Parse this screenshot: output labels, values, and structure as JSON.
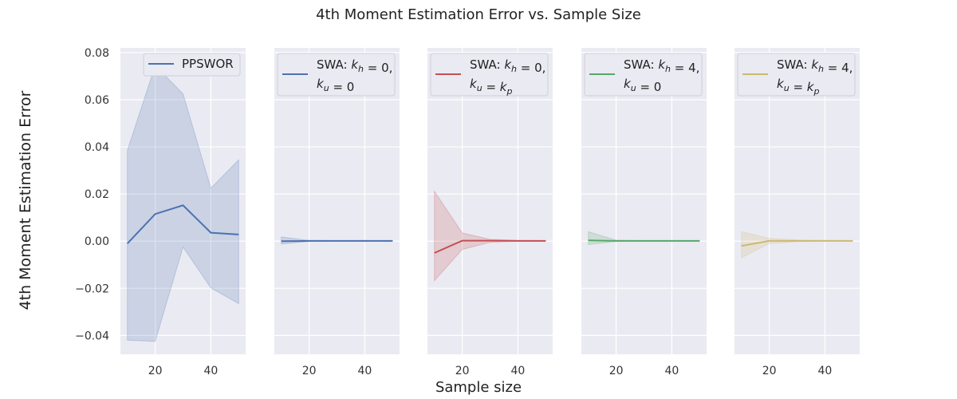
{
  "chart_data": {
    "title": "4th Moment Estimation Error vs. Sample Size",
    "xlabel": "Sample size",
    "ylabel": "4th Moment Estimation Error",
    "type": "line",
    "shared_y": true,
    "ylim": [
      -0.048,
      0.082
    ],
    "xlim": [
      7.5,
      52.5
    ],
    "yticks": [
      "0.08",
      "0.06",
      "0.04",
      "0.02",
      "0.00",
      "−0.02",
      "−0.04"
    ],
    "ytick_values": [
      0.08,
      0.06,
      0.04,
      0.02,
      0.0,
      -0.02,
      -0.04
    ],
    "xticks": [
      20,
      40
    ],
    "grid": true,
    "panels": [
      {
        "legend": "PPSWOR",
        "legend_parts": [
          {
            "line": "PPSWOR"
          }
        ],
        "color": "#4c72b0",
        "x": [
          10,
          20,
          30,
          40,
          50
        ],
        "mean": [
          -0.001,
          0.0115,
          0.0152,
          0.0036,
          0.0028
        ],
        "lower": [
          -0.042,
          -0.0425,
          -0.0025,
          -0.0198,
          -0.0265
        ],
        "upper": [
          0.0385,
          0.0745,
          0.0625,
          0.0225,
          0.0345
        ]
      },
      {
        "legend": "SWA: k_h = 0, k_u = 0",
        "legend_parts": [
          {
            "line": "SWA: k_h = 0,"
          },
          {
            "line": "k_u = 0"
          }
        ],
        "color": "#4c72b0",
        "x": [
          10,
          20,
          30,
          40,
          50
        ],
        "mean": [
          0.0,
          0.0001,
          0.0001,
          0.0001,
          0.0001
        ],
        "lower": [
          -0.0012,
          -0.0001,
          0.0,
          0.0,
          0.0
        ],
        "upper": [
          0.0018,
          0.0003,
          0.0002,
          0.0002,
          0.0002
        ]
      },
      {
        "legend": "SWA: k_h = 0, k_u = k_p",
        "legend_parts": [
          {
            "line": "SWA: k_h = 0,"
          },
          {
            "line": "k_u = k_p"
          }
        ],
        "color": "#c44e52",
        "x": [
          10,
          20,
          30,
          40,
          50
        ],
        "mean": [
          -0.005,
          0.0002,
          0.0002,
          0.0001,
          0.0001
        ],
        "lower": [
          -0.0168,
          -0.0035,
          -0.0005,
          0.0,
          0.0
        ],
        "upper": [
          0.0212,
          0.0035,
          0.0008,
          0.0003,
          0.0002
        ]
      },
      {
        "legend": "SWA: k_h = 4, k_u = 0",
        "legend_parts": [
          {
            "line": "SWA: k_h = 4,"
          },
          {
            "line": "k_u = 0"
          }
        ],
        "color": "#55a868",
        "x": [
          10,
          20,
          30,
          40,
          50
        ],
        "mean": [
          0.0003,
          0.0001,
          0.0001,
          0.0001,
          0.0001
        ],
        "lower": [
          -0.0015,
          -0.0001,
          0.0,
          0.0,
          0.0
        ],
        "upper": [
          0.004,
          0.0004,
          0.0002,
          0.0002,
          0.0002
        ]
      },
      {
        "legend": "SWA: k_h = 4, k_u = k_p",
        "legend_parts": [
          {
            "line": "SWA: k_h = 4,"
          },
          {
            "line": "k_u = k_p"
          }
        ],
        "color": "#ccb974",
        "x": [
          10,
          20,
          30,
          40,
          50
        ],
        "mean": [
          -0.002,
          0.0001,
          0.0001,
          0.0001,
          0.0001
        ],
        "lower": [
          -0.007,
          -0.001,
          -0.0002,
          0.0,
          0.0
        ],
        "upper": [
          0.004,
          0.0012,
          0.0005,
          0.0003,
          0.0002
        ]
      }
    ]
  }
}
